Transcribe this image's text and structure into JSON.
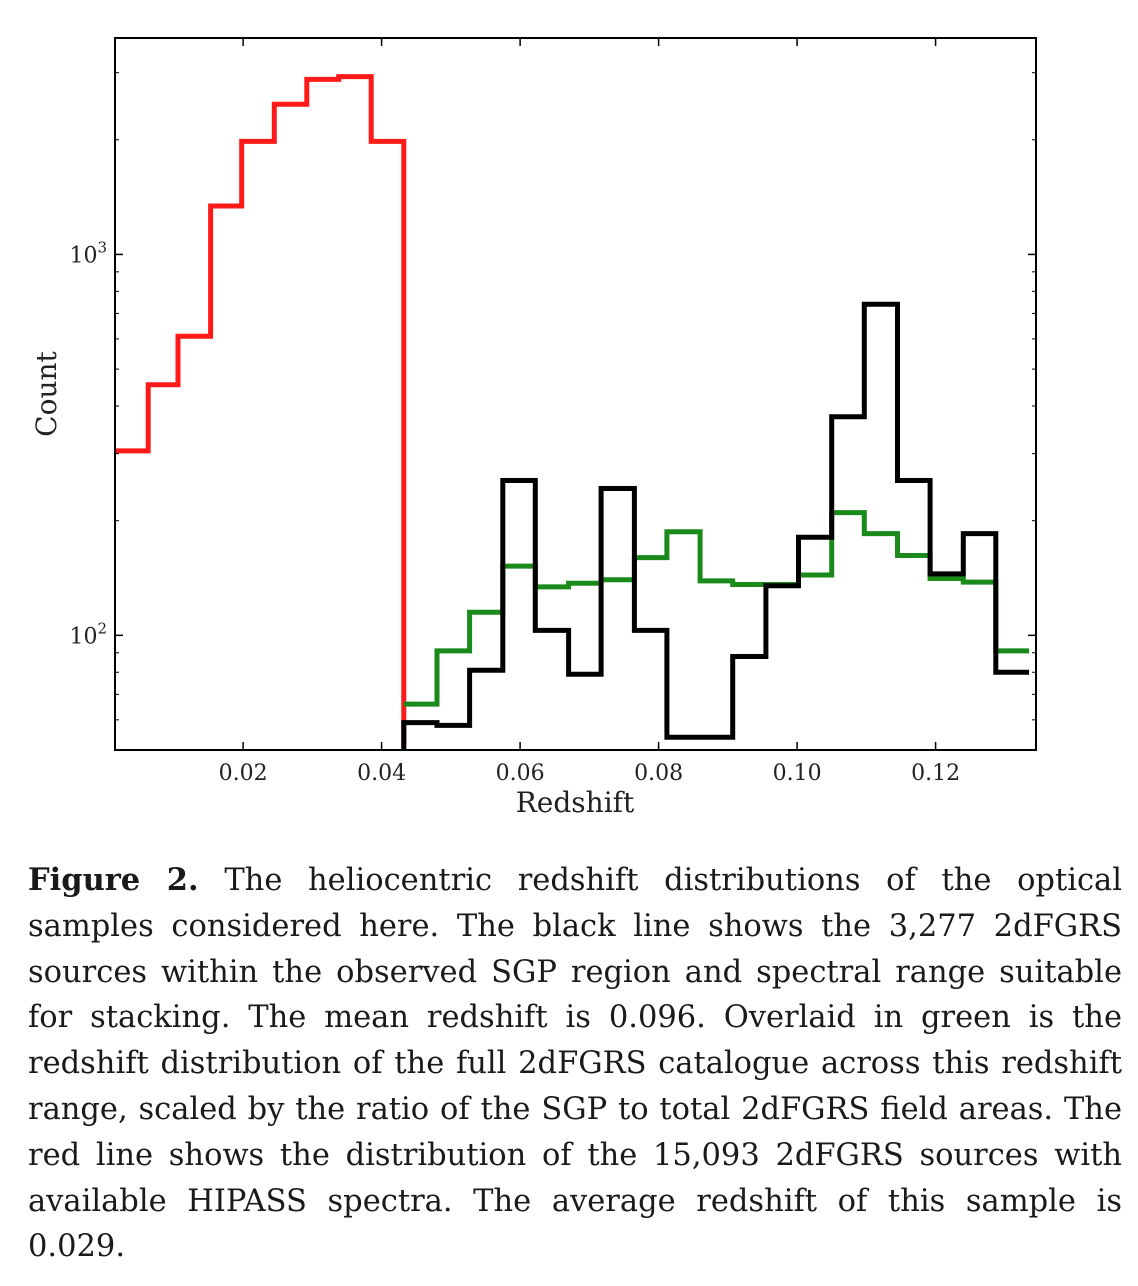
{
  "chart_data": {
    "type": "line",
    "step": true,
    "title": "",
    "xlabel": "Redshift",
    "ylabel": "Count",
    "xlim": [
      0.0015,
      0.1345
    ],
    "ylim": [
      50,
      3700
    ],
    "yscale": "log",
    "xticks": [
      0.02,
      0.04,
      0.06,
      0.08,
      0.1,
      0.12
    ],
    "xtick_labels": [
      "0.02",
      "0.04",
      "0.06",
      "0.08",
      "0.10",
      "0.12"
    ],
    "yticks": [
      100,
      1000
    ],
    "ytick_labels": [
      {
        "base": "10",
        "exp": "2"
      },
      {
        "base": "10",
        "exp": "3"
      }
    ],
    "grid": false,
    "legend": false,
    "series": [
      {
        "color": "#ff1a1a",
        "line_width": 5,
        "bin_edges": [
          0.0015,
          0.0063,
          0.0106,
          0.0153,
          0.0198,
          0.0245,
          0.0292,
          0.0338,
          0.0385,
          0.0432
        ],
        "values": [
          305,
          455,
          610,
          1340,
          1980,
          2480,
          2880,
          2930,
          1980
        ],
        "end_drop_to": 50
      },
      {
        "color": "#1a8a1a",
        "line_width": 5,
        "bin_edges": [
          0.0432,
          0.048,
          0.0527,
          0.0575,
          0.0622,
          0.067,
          0.0717,
          0.0765,
          0.0812,
          0.086,
          0.0907,
          0.0955,
          0.1002,
          0.105,
          0.1097,
          0.1145,
          0.1192,
          0.124,
          0.1287,
          0.1335
        ],
        "values": [
          66,
          91,
          115,
          152,
          134,
          137,
          140,
          160,
          187,
          139,
          136,
          136,
          144,
          210,
          185,
          162,
          141,
          138,
          91
        ]
      },
      {
        "color": "#000000",
        "line_width": 5,
        "bin_edges": [
          0.0432,
          0.048,
          0.0527,
          0.0575,
          0.0622,
          0.067,
          0.0717,
          0.0765,
          0.0812,
          0.086,
          0.0907,
          0.0955,
          0.1002,
          0.105,
          0.1097,
          0.1145,
          0.1192,
          0.124,
          0.1287,
          0.1335
        ],
        "values": [
          59,
          58,
          81,
          255,
          103,
          79,
          243,
          103,
          54,
          54,
          88,
          135,
          181,
          375,
          740,
          255,
          145,
          185,
          80
        ],
        "start_rise_from": 50
      }
    ]
  },
  "caption": {
    "label": "Figure 2.",
    "text": "The heliocentric redshift distributions of the optical samples considered here. The black line shows the 3,277 2dFGRS sources within the observed SGP region and spectral range suitable for stacking. The mean redshift is 0.096. Overlaid in green is the redshift distribution of the full 2dFGRS catalogue across this redshift range, scaled by the ratio of the SGP to total 2dFGRS field areas. The red line shows the distribution of the 15,093 2dFGRS sources with available HIPASS spectra. The average redshift of this sample is 0.029."
  }
}
